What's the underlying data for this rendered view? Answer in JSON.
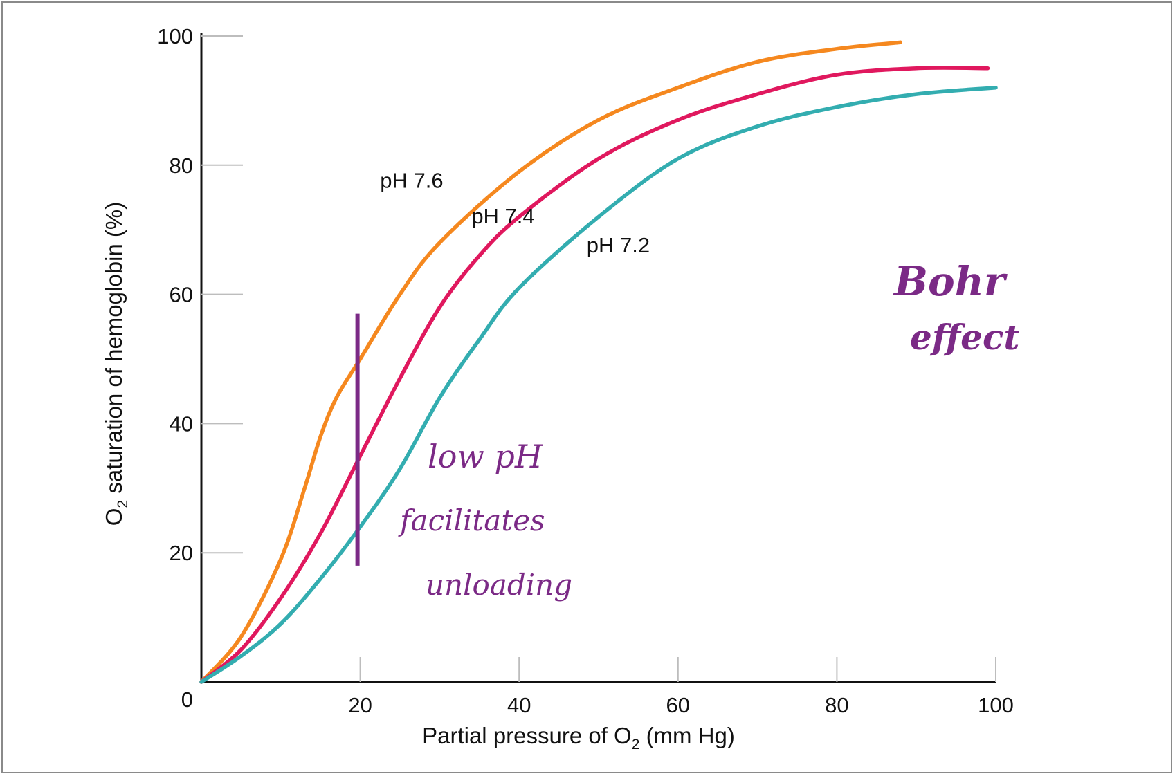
{
  "chart_data": {
    "type": "line",
    "title": "",
    "xlabel": {
      "main": "Partial pressure of O",
      "sub": "2",
      "tail": " (mm Hg)"
    },
    "ylabel": {
      "main": "O",
      "sub": "2",
      "tail": " saturation of hemoglobin (%)"
    },
    "xlim": [
      0,
      100
    ],
    "ylim": [
      0,
      100
    ],
    "xticks": [
      20,
      40,
      60,
      80,
      100
    ],
    "yticks": [
      0,
      20,
      40,
      60,
      80,
      100
    ],
    "grid": false,
    "series": [
      {
        "name": "pH 7.6",
        "color": "#f5881f",
        "x": [
          0,
          5,
          10,
          13,
          15,
          17,
          20,
          25,
          30,
          40,
          50,
          60,
          70,
          80,
          88
        ],
        "y": [
          0,
          7,
          19,
          30,
          38,
          44,
          50,
          60,
          68,
          79,
          87,
          92,
          96,
          98,
          99
        ]
      },
      {
        "name": "pH 7.4",
        "color": "#e0185e",
        "x": [
          0,
          5,
          10,
          15,
          20,
          25,
          30,
          35,
          40,
          50,
          60,
          70,
          80,
          90,
          99
        ],
        "y": [
          0,
          5,
          13,
          23,
          35,
          47,
          58,
          66,
          72,
          81,
          87,
          91,
          94,
          95,
          95
        ]
      },
      {
        "name": "pH 7.2",
        "color": "#33adb0",
        "x": [
          0,
          5,
          10,
          15,
          20,
          25,
          30,
          35,
          40,
          50,
          60,
          70,
          80,
          90,
          100
        ],
        "y": [
          0,
          4,
          9,
          16,
          24,
          33,
          44,
          53,
          61,
          72,
          81,
          86,
          89,
          91,
          92
        ]
      }
    ],
    "annotations": {
      "marker_line": {
        "x": 20,
        "y_from": 18,
        "y_to": 57,
        "color": "#7b2a86"
      },
      "handwritten": [
        "Bohr",
        "effect",
        "low pH",
        "facilitates",
        "unloading"
      ]
    }
  }
}
